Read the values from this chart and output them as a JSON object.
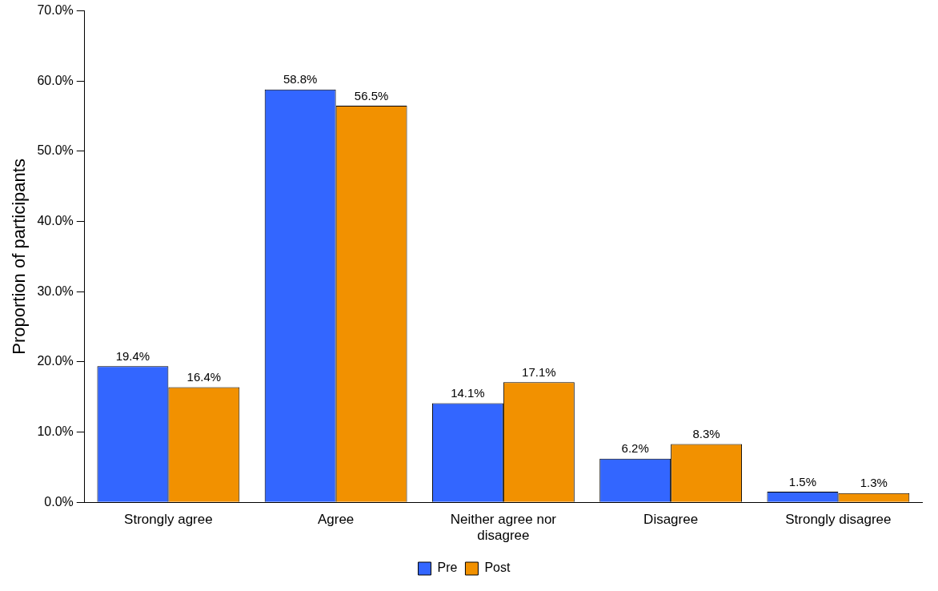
{
  "chart_data": {
    "type": "bar",
    "ylabel": "Proportion of participants",
    "categories": [
      "Strongly agree",
      "Agree",
      "Neither agree nor disagree",
      "Disagree",
      "Strongly disagree"
    ],
    "series": [
      {
        "name": "Pre",
        "color": "#3366ff",
        "values": [
          19.4,
          58.8,
          14.1,
          6.2,
          1.5
        ],
        "value_labels": [
          "19.4%",
          "58.8%",
          "14.1%",
          "6.2%",
          "1.5%"
        ]
      },
      {
        "name": "Post",
        "color": "#f29100",
        "values": [
          16.4,
          56.5,
          17.1,
          8.3,
          1.3
        ],
        "value_labels": [
          "16.4%",
          "56.5%",
          "17.1%",
          "8.3%",
          "1.3%"
        ]
      }
    ],
    "ylim": [
      0,
      70
    ],
    "yticks": [
      {
        "value": 0,
        "label": "0.0%"
      },
      {
        "value": 10,
        "label": "10.0%"
      },
      {
        "value": 20,
        "label": "20.0%"
      },
      {
        "value": 30,
        "label": "30.0%"
      },
      {
        "value": 40,
        "label": "40.0%"
      },
      {
        "value": 50,
        "label": "50.0%"
      },
      {
        "value": 60,
        "label": "60.0%"
      },
      {
        "value": 70,
        "label": "70.0%"
      }
    ],
    "grid": false,
    "legend": "bottom"
  }
}
